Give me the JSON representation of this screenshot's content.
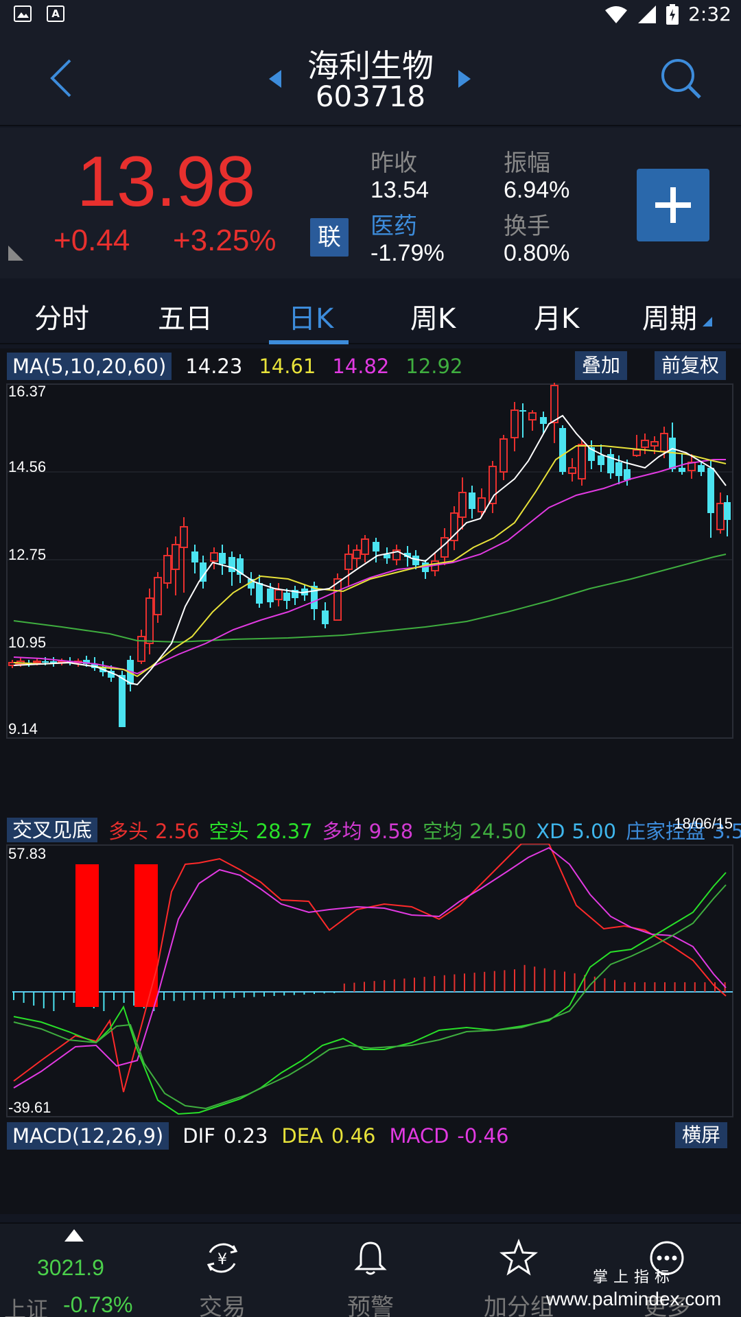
{
  "status_bar": {
    "time": "2:32",
    "notif_icon_1": "image-icon",
    "notif_icon_2": "a-icon"
  },
  "header": {
    "stock_name": "海利生物",
    "stock_code": "603718"
  },
  "quote": {
    "price": "13.98",
    "change": "+0.44",
    "change_pct": "+3.25%",
    "badge": "联",
    "prev_close_label": "昨收",
    "prev_close": "13.54",
    "amplitude_label": "振幅",
    "amplitude": "6.94%",
    "sector_label": "医药",
    "sector_change": "-1.79%",
    "turnover_label": "换手",
    "turnover": "0.80%",
    "price_color": "#e8302e"
  },
  "tabs": [
    "分时",
    "五日",
    "日K",
    "周K",
    "月K",
    "周期"
  ],
  "active_tab": "日K",
  "kline": {
    "indicator_name": "MA(5,10,20,60)",
    "ma_values": [
      {
        "value": "14.23",
        "color": "#ffffff"
      },
      {
        "value": "14.61",
        "color": "#e8e23a"
      },
      {
        "value": "14.82",
        "color": "#e23ae2"
      },
      {
        "value": "12.92",
        "color": "#3fae3f"
      }
    ],
    "overlay_button": "叠加",
    "adjust_button": "前复权",
    "y_labels": [
      "16.37",
      "14.56",
      "12.75",
      "10.95",
      "9.14"
    ],
    "date_label": "18/06/15"
  },
  "signal_bar": {
    "name": "交叉见底",
    "items": [
      {
        "label": "多头",
        "value": "2.56",
        "label_color": "#e8302e",
        "value_color": "#e8302e"
      },
      {
        "label": "空头",
        "value": "28.37",
        "label_color": "#29e029",
        "value_color": "#29e029"
      },
      {
        "label": "多均",
        "value": "9.58",
        "label_color": "#d23ad2",
        "value_color": "#d23ad2"
      },
      {
        "label": "空均",
        "value": "24.50",
        "label_color": "#3fae3f",
        "value_color": "#3fae3f"
      },
      {
        "label": "XD",
        "value": "5.00",
        "label_color": "#3fb6ec",
        "value_color": "#3fb6ec"
      },
      {
        "label": "庄家控盘",
        "value": "3.5",
        "label_color": "#3d8cdb",
        "value_color": "#3d8cdb"
      }
    ],
    "y_top": "57.83",
    "y_bottom": "-39.61"
  },
  "macd_bar": {
    "name": "MACD(12,26,9)",
    "items": [
      {
        "label": "DIF",
        "value": "0.23",
        "color": "#ffffff"
      },
      {
        "label": "DEA",
        "value": "0.46",
        "color": "#e8e23a"
      },
      {
        "label": "MACD",
        "value": "-0.46",
        "color": "#e23ae2"
      }
    ],
    "landscape_button": "横屏"
  },
  "bottom_nav": {
    "index_name": "上证",
    "index_value": "3021.9",
    "index_change": "-0.73%",
    "items": [
      {
        "label": "交易",
        "icon": "yen-exchange-icon"
      },
      {
        "label": "预警",
        "icon": "bell-icon"
      },
      {
        "label": "加分组",
        "icon": "star-icon"
      },
      {
        "label": "更多",
        "icon": "more-dots-icon"
      }
    ],
    "watermark_title": "掌上指标",
    "watermark_url": "www.palmindex.com"
  }
}
